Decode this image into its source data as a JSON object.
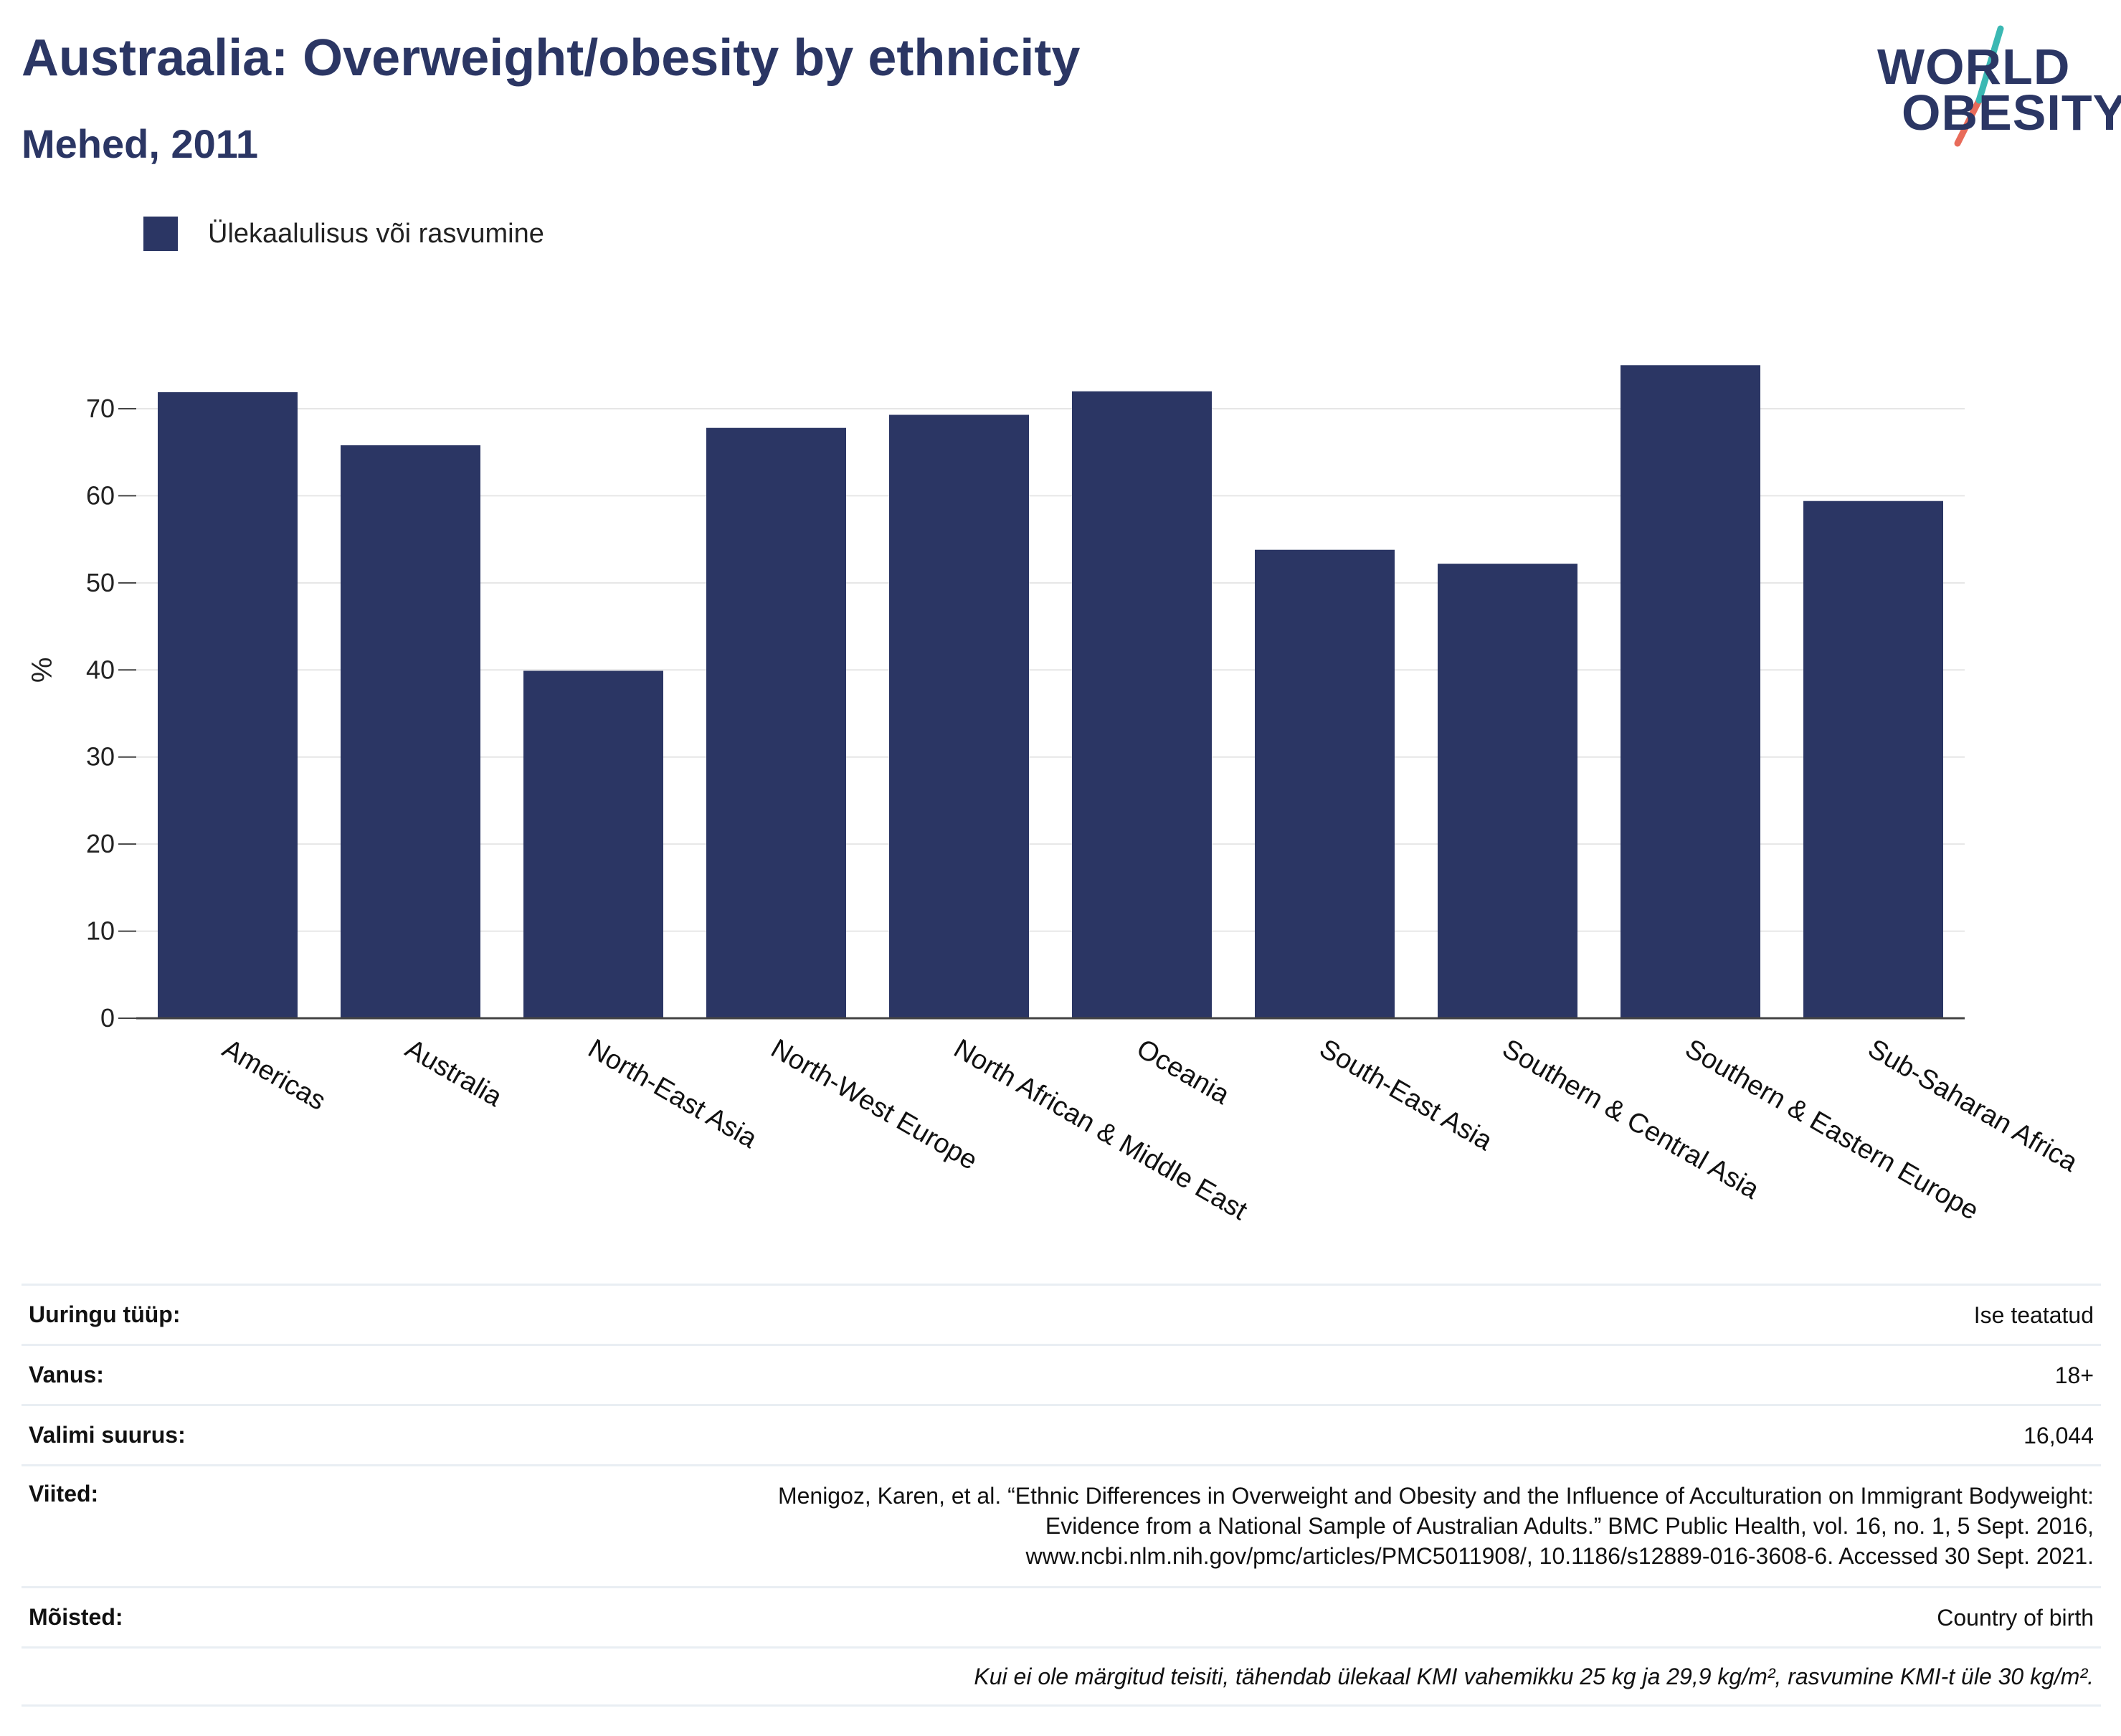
{
  "header": {
    "title": "Austraalia: Overweight/obesity by ethnicity",
    "subtitle": "Mehed, 2011"
  },
  "logo": {
    "line1": "WORLD",
    "line2": "OBESITY",
    "accent_colors": [
      "#3bb8b3",
      "#e86b5a"
    ]
  },
  "colors": {
    "bar": "#2b3664",
    "title": "#2b3664",
    "grid": "#e6e6e6",
    "axis": "#444444"
  },
  "chart_data": {
    "type": "bar",
    "categories": [
      "Americas",
      "Australia",
      "North-East Asia",
      "North-West Europe",
      "North African & Middle East",
      "Oceania",
      "South-East Asia",
      "Southern & Central Asia",
      "Southern & Eastern Europe",
      "Sub-Saharan Africa"
    ],
    "series": [
      {
        "name": "Ülekaalulisus või rasvumine",
        "values": [
          71.9,
          65.8,
          39.9,
          67.8,
          69.3,
          72.0,
          53.8,
          52.2,
          75.0,
          59.4
        ]
      }
    ],
    "ylabel": "%",
    "ylim": [
      0,
      80
    ],
    "yticks": [
      0,
      10,
      20,
      30,
      40,
      50,
      60,
      70
    ],
    "grid": true,
    "legend_position": "top-left"
  },
  "details": [
    {
      "key": "Uuringu tüüp:",
      "value": [
        "Ise teatatud"
      ]
    },
    {
      "key": "Vanus:",
      "value": [
        "18+"
      ]
    },
    {
      "key": "Valimi suurus:",
      "value": [
        "16,044"
      ]
    },
    {
      "key": "Viited:",
      "value": [
        "Menigoz, Karen, et al. “Ethnic Differences in Overweight and Obesity and the Influence of Acculturation on Immigrant Bodyweight:",
        "Evidence from a National Sample of Australian Adults.” BMC Public Health, vol. 16, no. 1, 5 Sept. 2016,",
        "www.ncbi.nlm.nih.gov/pmc/articles/PMC5011908/, 10.1186/s12889-016-3608-6. Accessed 30 Sept. 2021."
      ]
    },
    {
      "key": "Mõisted:",
      "value": [
        "Country of birth"
      ]
    }
  ],
  "footnote": "Kui ei ole märgitud teisiti, tähendab ülekaal KMI vahemikku 25 kg ja 29,9 kg/m², rasvumine KMI-t üle 30 kg/m²."
}
